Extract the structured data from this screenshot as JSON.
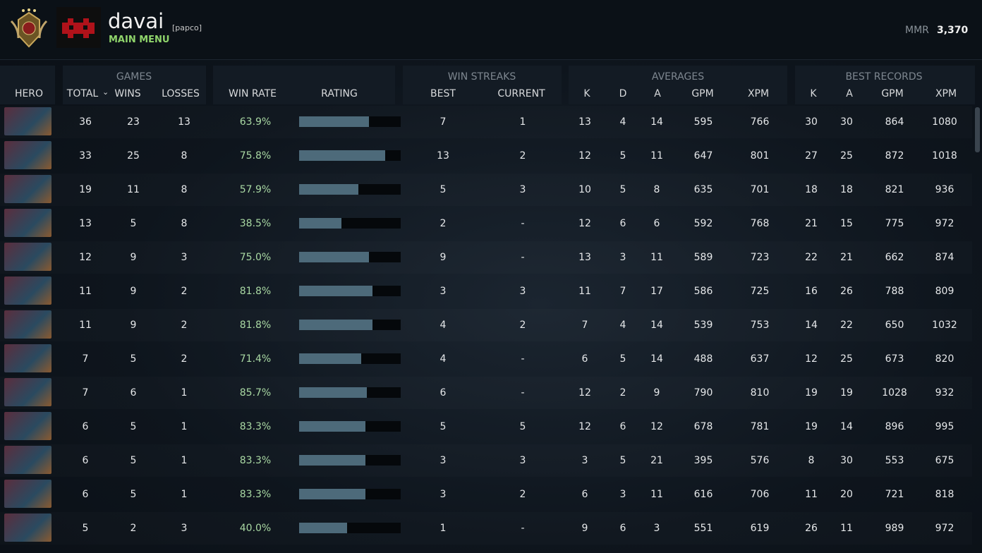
{
  "header": {
    "player_name": "davai",
    "team_tag": "[papco]",
    "subtitle": "MAIN MENU",
    "mmr_label": "MMR",
    "mmr_value": "3,370"
  },
  "table": {
    "groups": {
      "games": "GAMES",
      "win_streaks": "WIN STREAKS",
      "averages": "AVERAGES",
      "best_records": "BEST RECORDS"
    },
    "columns": {
      "hero": "HERO",
      "total": "TOTAL",
      "wins": "WINS",
      "losses": "LOSSES",
      "win_rate": "WIN RATE",
      "rating": "RATING",
      "best": "BEST",
      "current": "CURRENT",
      "k": "K",
      "d": "D",
      "a": "A",
      "gpm": "GPM",
      "xpm": "XPM",
      "best_k": "K",
      "best_a": "A",
      "best_gpm": "GPM",
      "best_xpm": "XPM"
    },
    "rows": [
      {
        "total": 36,
        "wins": 23,
        "losses": 13,
        "win_rate": "63.9%",
        "rating": 0.69,
        "best": 7,
        "current": 1,
        "k": 13,
        "d": 4,
        "a": 14,
        "gpm": 595,
        "xpm": 766,
        "best_k": 30,
        "best_a": 30,
        "best_gpm": 864,
        "best_xpm": 1080
      },
      {
        "total": 33,
        "wins": 25,
        "losses": 8,
        "win_rate": "75.8%",
        "rating": 0.85,
        "best": 13,
        "current": 2,
        "k": 12,
        "d": 5,
        "a": 11,
        "gpm": 647,
        "xpm": 801,
        "best_k": 27,
        "best_a": 25,
        "best_gpm": 872,
        "best_xpm": 1018
      },
      {
        "total": 19,
        "wins": 11,
        "losses": 8,
        "win_rate": "57.9%",
        "rating": 0.58,
        "best": 5,
        "current": 3,
        "k": 10,
        "d": 5,
        "a": 8,
        "gpm": 635,
        "xpm": 701,
        "best_k": 18,
        "best_a": 18,
        "best_gpm": 821,
        "best_xpm": 936
      },
      {
        "total": 13,
        "wins": 5,
        "losses": 8,
        "win_rate": "38.5%",
        "rating": 0.42,
        "best": 2,
        "current": "-",
        "k": 12,
        "d": 6,
        "a": 6,
        "gpm": 592,
        "xpm": 768,
        "best_k": 21,
        "best_a": 15,
        "best_gpm": 775,
        "best_xpm": 972
      },
      {
        "total": 12,
        "wins": 9,
        "losses": 3,
        "win_rate": "75.0%",
        "rating": 0.69,
        "best": 9,
        "current": "-",
        "k": 13,
        "d": 3,
        "a": 11,
        "gpm": 589,
        "xpm": 723,
        "best_k": 22,
        "best_a": 21,
        "best_gpm": 662,
        "best_xpm": 874
      },
      {
        "total": 11,
        "wins": 9,
        "losses": 2,
        "win_rate": "81.8%",
        "rating": 0.72,
        "best": 3,
        "current": 3,
        "k": 11,
        "d": 7,
        "a": 17,
        "gpm": 586,
        "xpm": 725,
        "best_k": 16,
        "best_a": 26,
        "best_gpm": 788,
        "best_xpm": 809
      },
      {
        "total": 11,
        "wins": 9,
        "losses": 2,
        "win_rate": "81.8%",
        "rating": 0.72,
        "best": 4,
        "current": 2,
        "k": 7,
        "d": 4,
        "a": 14,
        "gpm": 539,
        "xpm": 753,
        "best_k": 14,
        "best_a": 22,
        "best_gpm": 650,
        "best_xpm": 1032
      },
      {
        "total": 7,
        "wins": 5,
        "losses": 2,
        "win_rate": "71.4%",
        "rating": 0.61,
        "best": 4,
        "current": "-",
        "k": 6,
        "d": 5,
        "a": 14,
        "gpm": 488,
        "xpm": 637,
        "best_k": 12,
        "best_a": 25,
        "best_gpm": 673,
        "best_xpm": 820
      },
      {
        "total": 7,
        "wins": 6,
        "losses": 1,
        "win_rate": "85.7%",
        "rating": 0.67,
        "best": 6,
        "current": "-",
        "k": 12,
        "d": 2,
        "a": 9,
        "gpm": 790,
        "xpm": 810,
        "best_k": 19,
        "best_a": 19,
        "best_gpm": 1028,
        "best_xpm": 932
      },
      {
        "total": 6,
        "wins": 5,
        "losses": 1,
        "win_rate": "83.3%",
        "rating": 0.65,
        "best": 5,
        "current": 5,
        "k": 12,
        "d": 6,
        "a": 12,
        "gpm": 678,
        "xpm": 781,
        "best_k": 19,
        "best_a": 14,
        "best_gpm": 896,
        "best_xpm": 995
      },
      {
        "total": 6,
        "wins": 5,
        "losses": 1,
        "win_rate": "83.3%",
        "rating": 0.65,
        "best": 3,
        "current": 3,
        "k": 3,
        "d": 5,
        "a": 21,
        "gpm": 395,
        "xpm": 576,
        "best_k": 8,
        "best_a": 30,
        "best_gpm": 553,
        "best_xpm": 675
      },
      {
        "total": 6,
        "wins": 5,
        "losses": 1,
        "win_rate": "83.3%",
        "rating": 0.65,
        "best": 3,
        "current": 2,
        "k": 6,
        "d": 3,
        "a": 11,
        "gpm": 616,
        "xpm": 706,
        "best_k": 11,
        "best_a": 20,
        "best_gpm": 721,
        "best_xpm": 818
      },
      {
        "total": 5,
        "wins": 2,
        "losses": 3,
        "win_rate": "40.0%",
        "rating": 0.47,
        "best": 1,
        "current": "-",
        "k": 9,
        "d": 6,
        "a": 3,
        "gpm": 551,
        "xpm": 619,
        "best_k": 26,
        "best_a": 11,
        "best_gpm": 989,
        "best_xpm": 972
      }
    ]
  }
}
